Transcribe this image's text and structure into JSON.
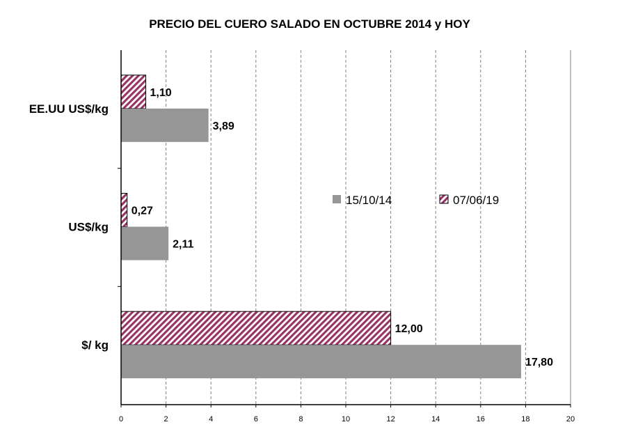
{
  "chart_data": {
    "type": "bar",
    "orientation": "horizontal",
    "title": "PRECIO DEL CUERO SALADO EN OCTUBRE 2014 y HOY",
    "categories": [
      "EE.UU US$/kg",
      "US$/kg",
      "$/ kg"
    ],
    "series": [
      {
        "name": "15/10/14",
        "values": [
          3.89,
          2.11,
          17.8
        ],
        "labels": [
          "3,89",
          "2,11",
          "17,80"
        ],
        "color": "#969696",
        "pattern": "solid"
      },
      {
        "name": "07/06/19",
        "values": [
          1.1,
          0.27,
          12.0
        ],
        "labels": [
          "1,10",
          "0,27",
          "12,00"
        ],
        "color": "#993366",
        "pattern": "diagonal-hatch"
      }
    ],
    "xlim": [
      0,
      20
    ],
    "xticks": [
      0,
      2,
      4,
      6,
      8,
      10,
      12,
      14,
      16,
      18,
      20
    ],
    "grid": "vertical dashed",
    "legend_position": "center-right"
  }
}
